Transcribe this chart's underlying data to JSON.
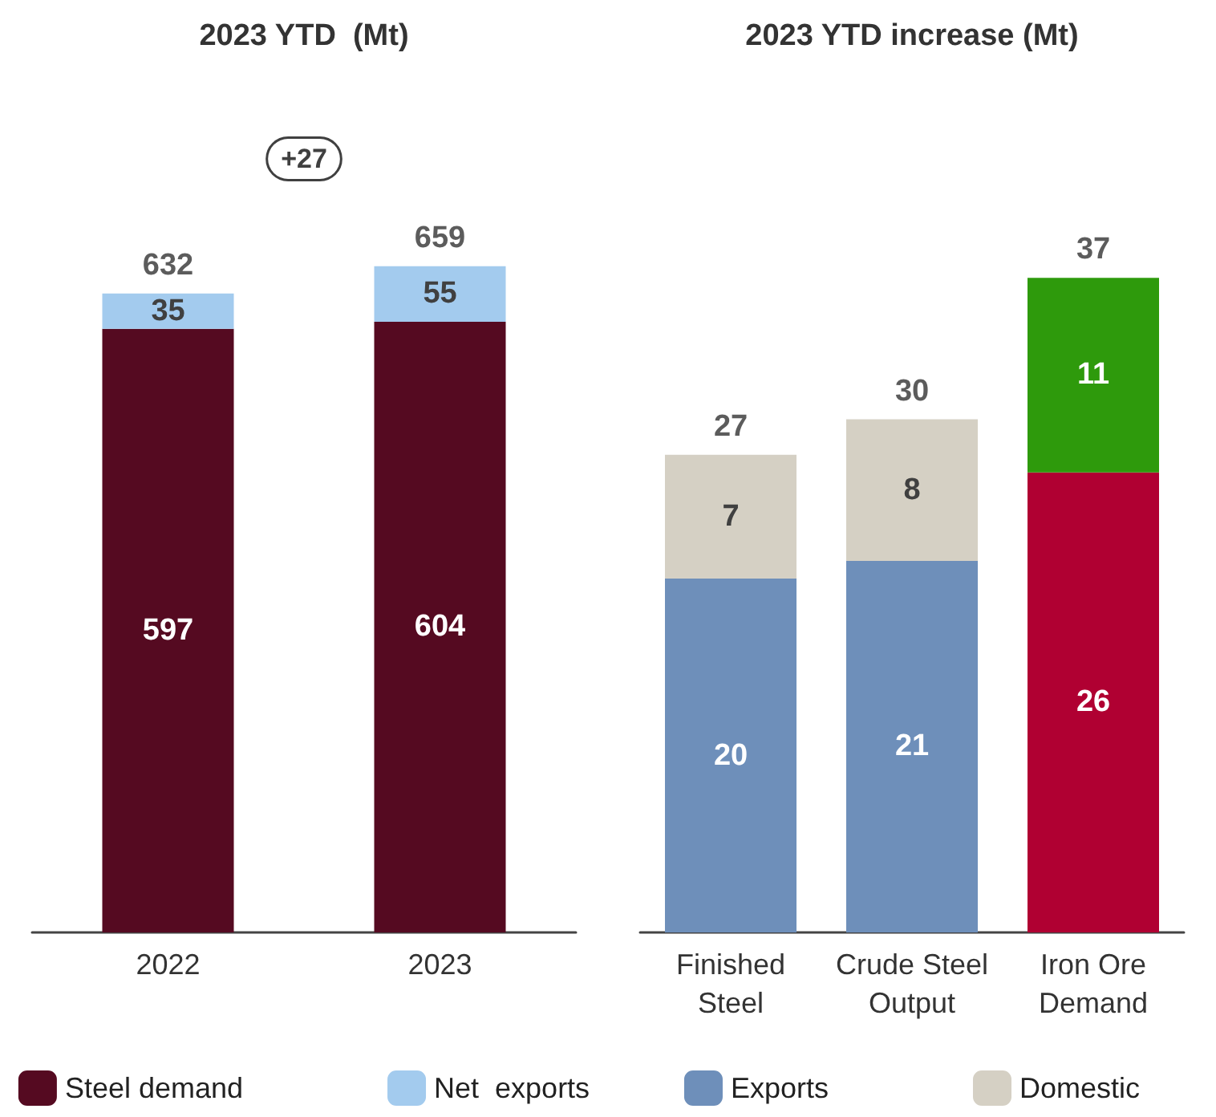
{
  "chart_data": [
    {
      "type": "bar",
      "title": "2023 YTD  (Mt)",
      "categories": [
        "2022",
        "2023"
      ],
      "stacked": true,
      "data_labels": true,
      "totals": [
        "632",
        "659"
      ],
      "annotations": [
        "+27"
      ],
      "tick_labels": "x",
      "grid": false,
      "legend": "bottom",
      "series": [
        {
          "name": "Steel demand",
          "color": "#550a21",
          "values": [
            597,
            604
          ]
        },
        {
          "name": "Net  exports",
          "color": "#a3cbee",
          "values": [
            35,
            55
          ]
        }
      ]
    },
    {
      "type": "bar",
      "title": "2023 YTD increase (Mt)",
      "categories": [
        "Finished\nSteel",
        "Crude Steel\nOutput",
        "Iron Ore\nDemand"
      ],
      "stacked": true,
      "data_labels": true,
      "totals": [
        "27",
        "30",
        "37"
      ],
      "tick_labels": "x",
      "grid": false,
      "legend": "bottom",
      "series": [
        {
          "name": "Exports",
          "colors": [
            "#6e8fba",
            "#6e8fba",
            "#b00032"
          ],
          "values": [
            20,
            21,
            26
          ]
        },
        {
          "name": "Domestic",
          "colors": [
            "#d5d0c4",
            "#d5d0c4",
            "#2e9a0c"
          ],
          "values": [
            7,
            8,
            11
          ]
        }
      ]
    }
  ]
}
